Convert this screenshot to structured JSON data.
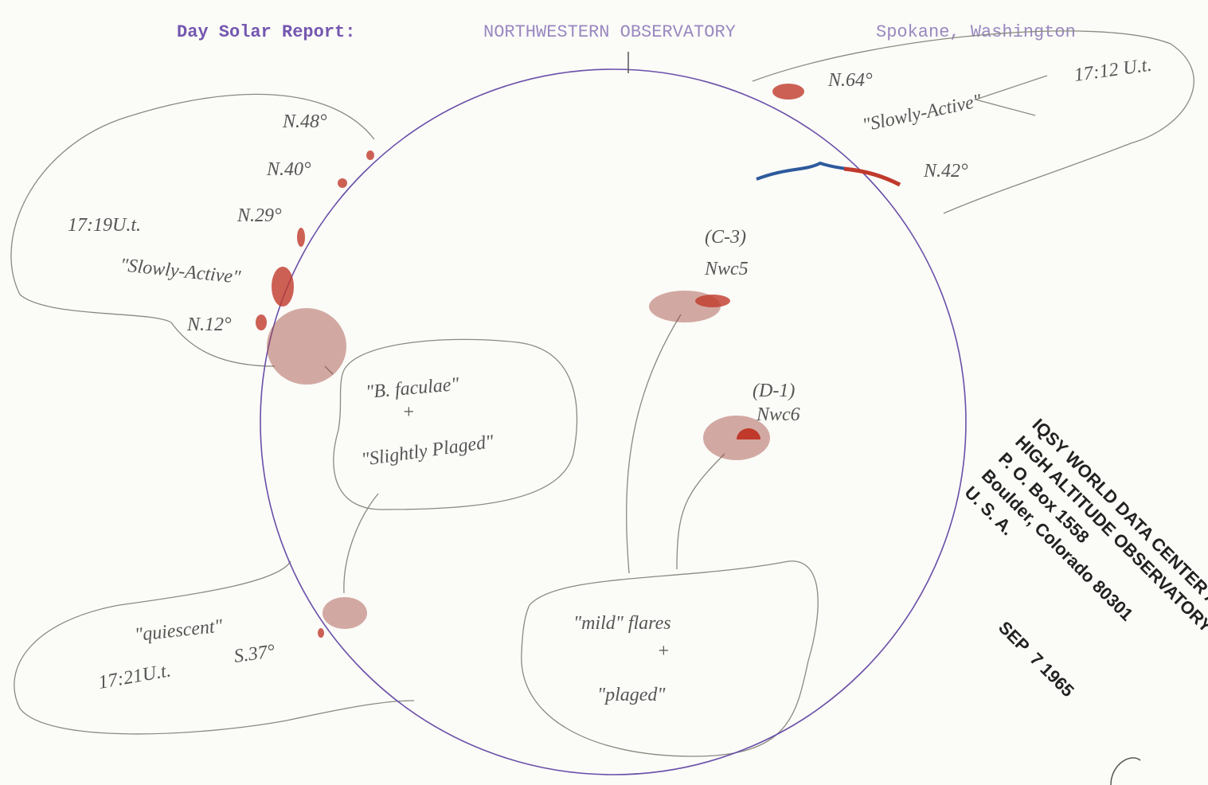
{
  "header": {
    "title": "Day Solar Report:",
    "observatory": "NORTHWESTERN OBSERVATORY",
    "location": "Spokane, Washington"
  },
  "northeast_region": {
    "latitude_top": "N.64°",
    "time": "17:12 U.t.",
    "status": "\"Slowly-Active\"",
    "latitude_bottom": "N.42°"
  },
  "northwest_region": {
    "latitudes": [
      "N.48°",
      "N.40°",
      "N.29°",
      "N.12°"
    ],
    "time": "17:19U.t.",
    "status": "\"Slowly-Active\""
  },
  "faculae_note": {
    "line1": "\"B. faculae\"",
    "plus": "+",
    "line2": "\"Slightly Plaged\""
  },
  "groups": [
    {
      "class": "(C-3)",
      "designation": "Nwc5"
    },
    {
      "class": "(D-1)",
      "designation": "Nwc6"
    }
  ],
  "flares_note": {
    "line1": "\"mild\" flares",
    "plus": "+",
    "line2": "\"plaged\""
  },
  "southwest_region": {
    "status": "\"quiescent\"",
    "time": "17:21U.t.",
    "latitude": "S.37°"
  },
  "stamp": {
    "lines": [
      "IQSY WORLD DATA CENTER A",
      "HIGH ALTITUDE OBSERVATORY",
      "P. O. Box 1558",
      "Boulder, Colorado  80301",
      "U. S. A."
    ],
    "date": "SEP  7 1965"
  }
}
